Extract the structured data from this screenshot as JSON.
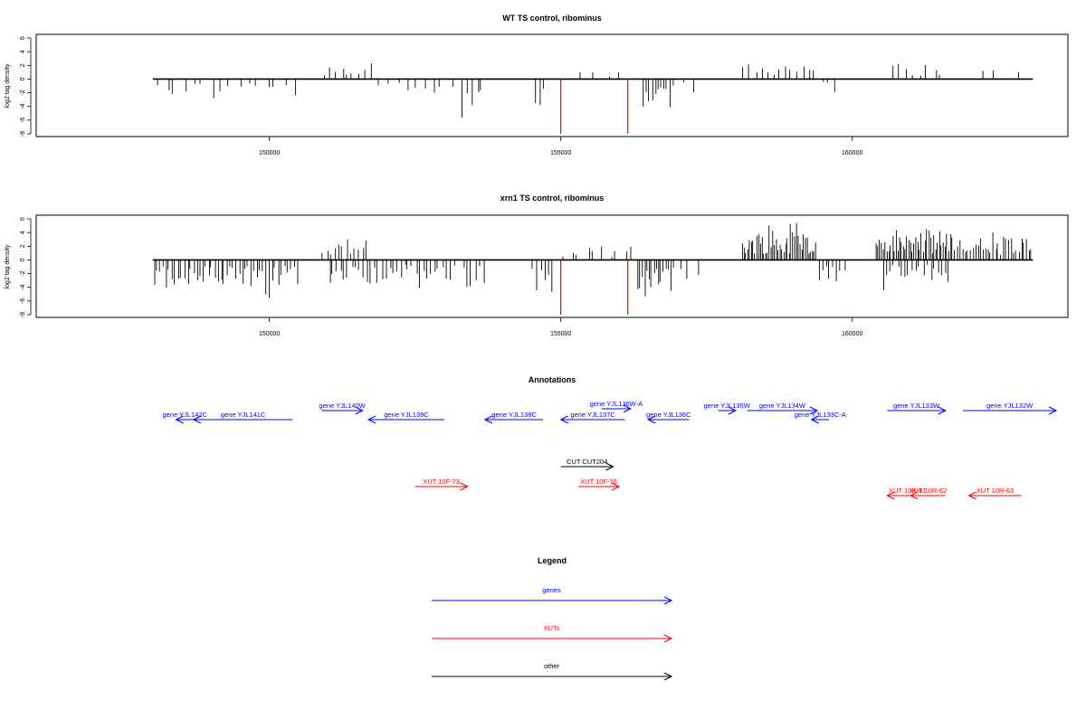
{
  "chart_data": [
    {
      "type": "bar",
      "title": "WT TS control, ribominus",
      "ylabel": "log2 tag density",
      "xlabel": "",
      "ylim": [
        -8,
        6
      ],
      "yticks": [
        6,
        4,
        2,
        0,
        -2,
        -4,
        -6,
        -8
      ],
      "xlim": [
        146000,
        163700
      ],
      "xticks": [
        150000,
        155000,
        160000
      ],
      "grid": false,
      "baseline_range": [
        148000,
        163100
      ],
      "segments": [
        {
          "from": 148000,
          "to": 150500,
          "sign": -1,
          "mag": 2.5,
          "density": 5
        },
        {
          "from": 150900,
          "to": 151800,
          "sign": 1,
          "mag": 2.5,
          "density": 8
        },
        {
          "from": 151800,
          "to": 153200,
          "sign": -1,
          "mag": 2.0,
          "density": 5
        },
        {
          "from": 153300,
          "to": 153700,
          "sign": -1,
          "mag": 4.5,
          "density": 9
        },
        {
          "from": 154500,
          "to": 154800,
          "sign": -1,
          "mag": 4.5,
          "density": 9
        },
        {
          "from": 155200,
          "to": 156200,
          "sign": 1,
          "mag": 1.5,
          "density": 3
        },
        {
          "from": 156400,
          "to": 156900,
          "sign": -1,
          "mag": 6.0,
          "density": 15
        },
        {
          "from": 156900,
          "to": 157400,
          "sign": -1,
          "mag": 2.0,
          "density": 5
        },
        {
          "from": 158100,
          "to": 159400,
          "sign": 1,
          "mag": 3.0,
          "density": 8
        },
        {
          "from": 159400,
          "to": 159800,
          "sign": -1,
          "mag": 2.0,
          "density": 5
        },
        {
          "from": 160600,
          "to": 161600,
          "sign": 1,
          "mag": 2.5,
          "density": 6
        },
        {
          "from": 162000,
          "to": 163000,
          "sign": 1,
          "mag": 1.5,
          "density": 2
        }
      ],
      "red_marks": [
        {
          "x": 155000,
          "y": -8
        },
        {
          "x": 156150,
          "y": -8
        }
      ],
      "colors": {
        "bars": "#000000",
        "red": "#ff0000"
      }
    },
    {
      "type": "bar",
      "title": "xrn1 TS control, ribominus",
      "ylabel": "log2 tag density",
      "xlabel": "",
      "ylim": [
        -8,
        6
      ],
      "yticks": [
        6,
        4,
        2,
        0,
        -2,
        -4,
        -6,
        -8
      ],
      "xlim": [
        146000,
        163700
      ],
      "xticks": [
        150000,
        155000,
        160000
      ],
      "grid": false,
      "baseline_range": [
        148000,
        163100
      ],
      "segments": [
        {
          "from": 148000,
          "to": 150500,
          "sign": -1,
          "mag": 4.5,
          "density": 15
        },
        {
          "from": 150900,
          "to": 151700,
          "sign": 1,
          "mag": 3.5,
          "density": 12
        },
        {
          "from": 151000,
          "to": 153200,
          "sign": -1,
          "mag": 3.5,
          "density": 12
        },
        {
          "from": 153300,
          "to": 153700,
          "sign": -1,
          "mag": 4.5,
          "density": 12
        },
        {
          "from": 154500,
          "to": 154900,
          "sign": -1,
          "mag": 5.0,
          "density": 12
        },
        {
          "from": 155000,
          "to": 156300,
          "sign": 1,
          "mag": 2.0,
          "density": 6
        },
        {
          "from": 156300,
          "to": 156900,
          "sign": -1,
          "mag": 6.0,
          "density": 20
        },
        {
          "from": 156900,
          "to": 157400,
          "sign": -1,
          "mag": 3.0,
          "density": 6
        },
        {
          "from": 158100,
          "to": 159400,
          "sign": 1,
          "mag": 4.5,
          "density": 25
        },
        {
          "from": 159400,
          "to": 159900,
          "sign": -1,
          "mag": 3.5,
          "density": 12
        },
        {
          "from": 160400,
          "to": 161700,
          "sign": 1,
          "mag": 4.5,
          "density": 25
        },
        {
          "from": 160500,
          "to": 161700,
          "sign": -1,
          "mag": 3.5,
          "density": 12
        },
        {
          "from": 161700,
          "to": 163100,
          "sign": 1,
          "mag": 3.5,
          "density": 18
        }
      ],
      "red_marks": [
        {
          "x": 155000,
          "y": -8
        },
        {
          "x": 156150,
          "y": -8
        }
      ],
      "colors": {
        "bars": "#000000",
        "red": "#ff0000"
      }
    }
  ],
  "annotations": {
    "title": "Annotations",
    "colors": {
      "genes": "#0000ff",
      "xuts": "#ff0000",
      "other": "#000000"
    },
    "features": [
      {
        "label": "gene YJL142C",
        "start": 148400,
        "end": 148700,
        "strand": "-",
        "row": 1,
        "kind": "genes"
      },
      {
        "label": "gene YJL141C",
        "start": 148700,
        "end": 150400,
        "strand": "-",
        "row": 1,
        "kind": "genes"
      },
      {
        "label": "gene YJL140W",
        "start": 150900,
        "end": 151600,
        "strand": "+",
        "row": 0,
        "kind": "genes"
      },
      {
        "label": "gene YJL139C",
        "start": 151700,
        "end": 153000,
        "strand": "-",
        "row": 1,
        "kind": "genes"
      },
      {
        "label": "gene YJL138C",
        "start": 153700,
        "end": 154700,
        "strand": "-",
        "row": 1,
        "kind": "genes"
      },
      {
        "label": "gene YJL137C",
        "start": 155000,
        "end": 156100,
        "strand": "-",
        "row": 1,
        "kind": "genes"
      },
      {
        "label": "gene YJL136W-A",
        "start": 155700,
        "end": 156200,
        "strand": "+",
        "row": -1,
        "kind": "genes"
      },
      {
        "label": "gene YJL136C",
        "start": 156500,
        "end": 157200,
        "strand": "-",
        "row": 1,
        "kind": "genes"
      },
      {
        "label": "gene YJL135W",
        "start": 157700,
        "end": 158000,
        "strand": "+",
        "row": 0,
        "kind": "genes"
      },
      {
        "label": "gene YJL134W",
        "start": 158200,
        "end": 159400,
        "strand": "+",
        "row": 0,
        "kind": "genes"
      },
      {
        "label": "gene YJL133C-A",
        "start": 159300,
        "end": 159600,
        "strand": "-",
        "row": 1,
        "kind": "genes"
      },
      {
        "label": "gene YJL133W",
        "start": 160600,
        "end": 161600,
        "strand": "+",
        "row": 0,
        "kind": "genes"
      },
      {
        "label": "gene YJL132W",
        "start": 161900,
        "end": 163500,
        "strand": "+",
        "row": 0,
        "kind": "genes"
      },
      {
        "label": "CUT CUT204",
        "start": 155000,
        "end": 155900,
        "strand": "+",
        "row": 3,
        "kind": "other"
      },
      {
        "label": "XUT 10F-73",
        "start": 152500,
        "end": 153400,
        "strand": "+",
        "row": 4,
        "kind": "xuts"
      },
      {
        "label": "XUT 10F-76",
        "start": 155300,
        "end": 156000,
        "strand": "+",
        "row": 4,
        "kind": "xuts"
      },
      {
        "label": "XUT 10R-61",
        "start": 160600,
        "end": 161300,
        "strand": "-",
        "row": 5,
        "kind": "xuts"
      },
      {
        "label": "XUT 10R-62",
        "start": 161000,
        "end": 161600,
        "strand": "-",
        "row": 5,
        "kind": "xuts"
      },
      {
        "label": "XUT 10R-63",
        "start": 162000,
        "end": 162900,
        "strand": "-",
        "row": 5,
        "kind": "xuts"
      }
    ]
  },
  "legend": {
    "title": "Legend",
    "items": [
      {
        "label": "genes",
        "color": "#0000ff"
      },
      {
        "label": "XUTs",
        "color": "#ff0000"
      },
      {
        "label": "other",
        "color": "#000000"
      }
    ]
  }
}
